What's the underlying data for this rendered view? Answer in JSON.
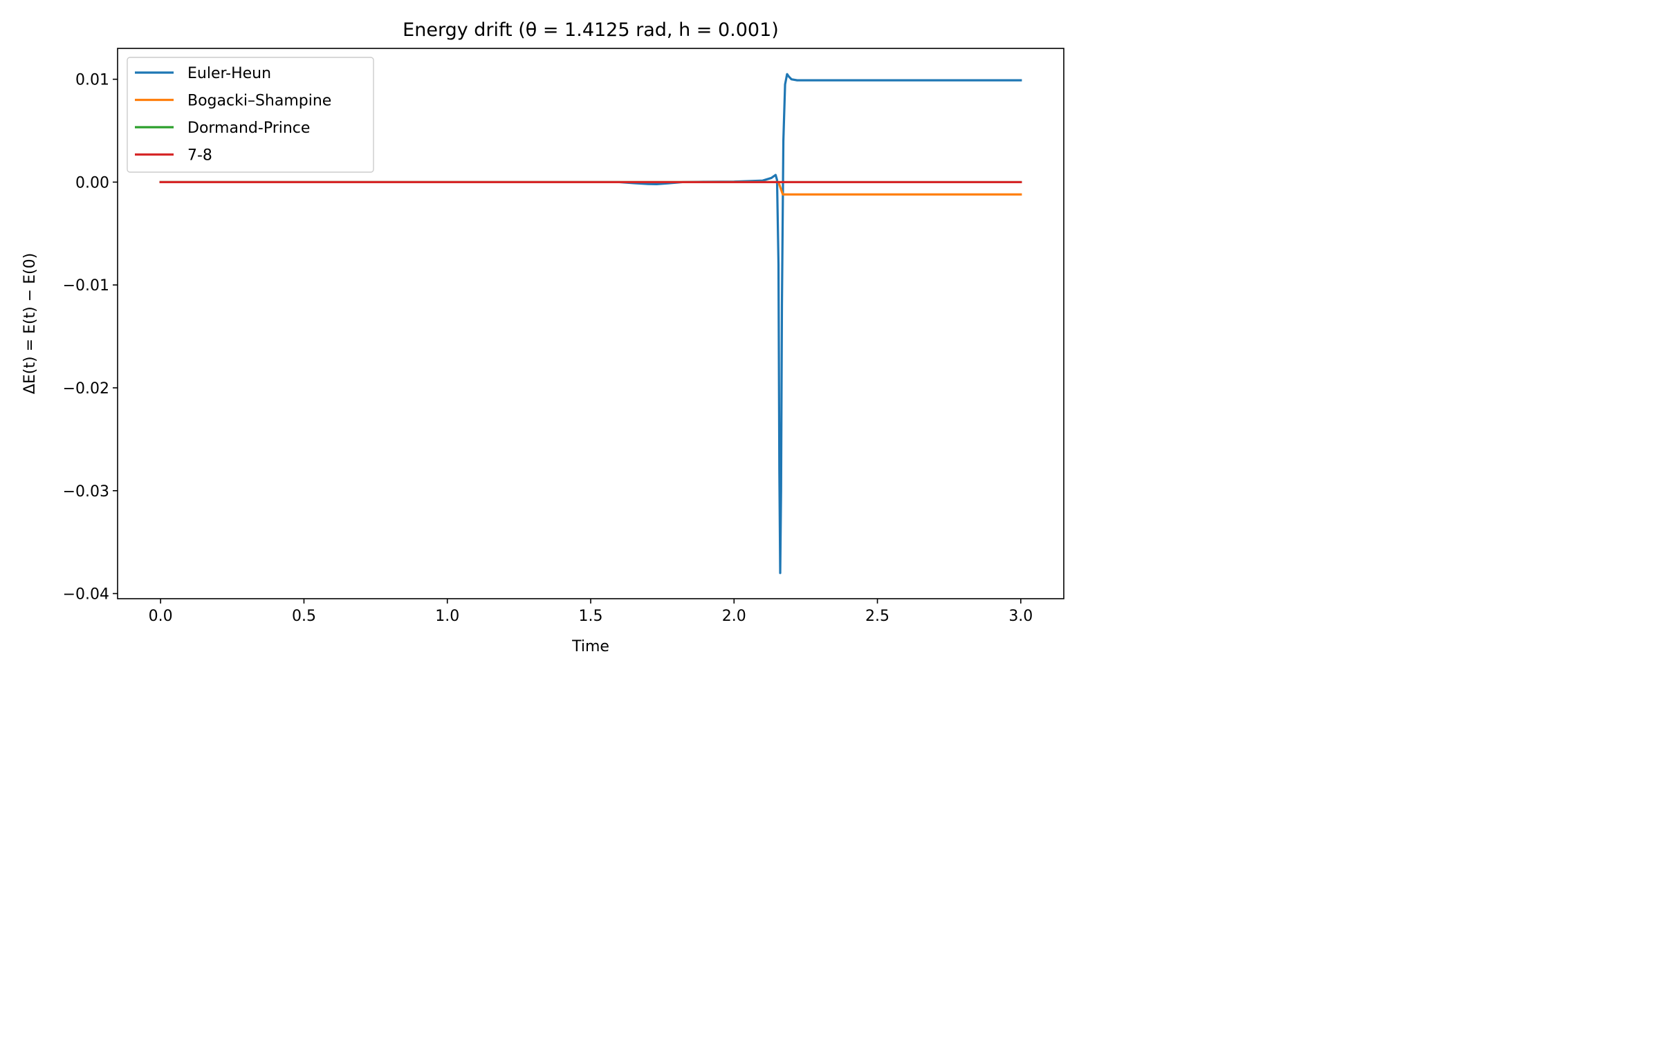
{
  "chart_data": {
    "type": "line",
    "title": "Energy drift (θ = 1.4125 rad, h = 0.001)",
    "xlabel": "Time",
    "ylabel": "ΔE(t) = E(t) − E(0)",
    "xlim": [
      -0.15,
      3.15
    ],
    "ylim": [
      -0.0405,
      0.013
    ],
    "xticks": [
      {
        "value": 0.0,
        "label": "0.0"
      },
      {
        "value": 0.5,
        "label": "0.5"
      },
      {
        "value": 1.0,
        "label": "1.0"
      },
      {
        "value": 1.5,
        "label": "1.5"
      },
      {
        "value": 2.0,
        "label": "2.0"
      },
      {
        "value": 2.5,
        "label": "2.5"
      },
      {
        "value": 3.0,
        "label": "3.0"
      }
    ],
    "yticks": [
      {
        "value": 0.01,
        "label": "0.01"
      },
      {
        "value": 0.0,
        "label": "0.00"
      },
      {
        "value": -0.01,
        "label": "−0.01"
      },
      {
        "value": -0.02,
        "label": "−0.02"
      },
      {
        "value": -0.03,
        "label": "−0.03"
      },
      {
        "value": -0.04,
        "label": "−0.04"
      }
    ],
    "grid": false,
    "legend_position": "top-left",
    "series": [
      {
        "name": "Euler-Heun",
        "color": "#1f77b4",
        "x": [
          0.0,
          1.6,
          1.65,
          1.7,
          1.73,
          1.77,
          1.82,
          1.9,
          2.0,
          2.1,
          2.13,
          2.145,
          2.15,
          2.155,
          2.158,
          2.161,
          2.164,
          2.167,
          2.172,
          2.178,
          2.185,
          2.19,
          2.2,
          2.22,
          2.3,
          2.5,
          3.0
        ],
        "y": [
          0.0,
          0.0,
          -0.0001,
          -0.00018,
          -0.0002,
          -0.00012,
          0.0,
          3e-05,
          5e-05,
          0.00015,
          0.0004,
          0.0007,
          0.0002,
          -0.008,
          -0.028,
          -0.038,
          -0.03,
          -0.012,
          0.004,
          0.0095,
          0.0105,
          0.0103,
          0.01,
          0.0099,
          0.0099,
          0.0099,
          0.0099
        ]
      },
      {
        "name": "Bogacki–Shampine",
        "color": "#ff7f0e",
        "x": [
          0.0,
          2.14,
          2.155,
          2.165,
          2.17,
          2.2,
          3.0
        ],
        "y": [
          0.0,
          0.0,
          0.0,
          -0.0008,
          -0.0012,
          -0.0012,
          -0.0012
        ]
      },
      {
        "name": "Dormand-Prince",
        "color": "#2ca02c",
        "x": [
          0.0,
          3.0
        ],
        "y": [
          0.0,
          0.0
        ]
      },
      {
        "name": "7-8",
        "color": "#d62728",
        "x": [
          0.0,
          3.0
        ],
        "y": [
          0.0,
          0.0
        ]
      }
    ]
  }
}
